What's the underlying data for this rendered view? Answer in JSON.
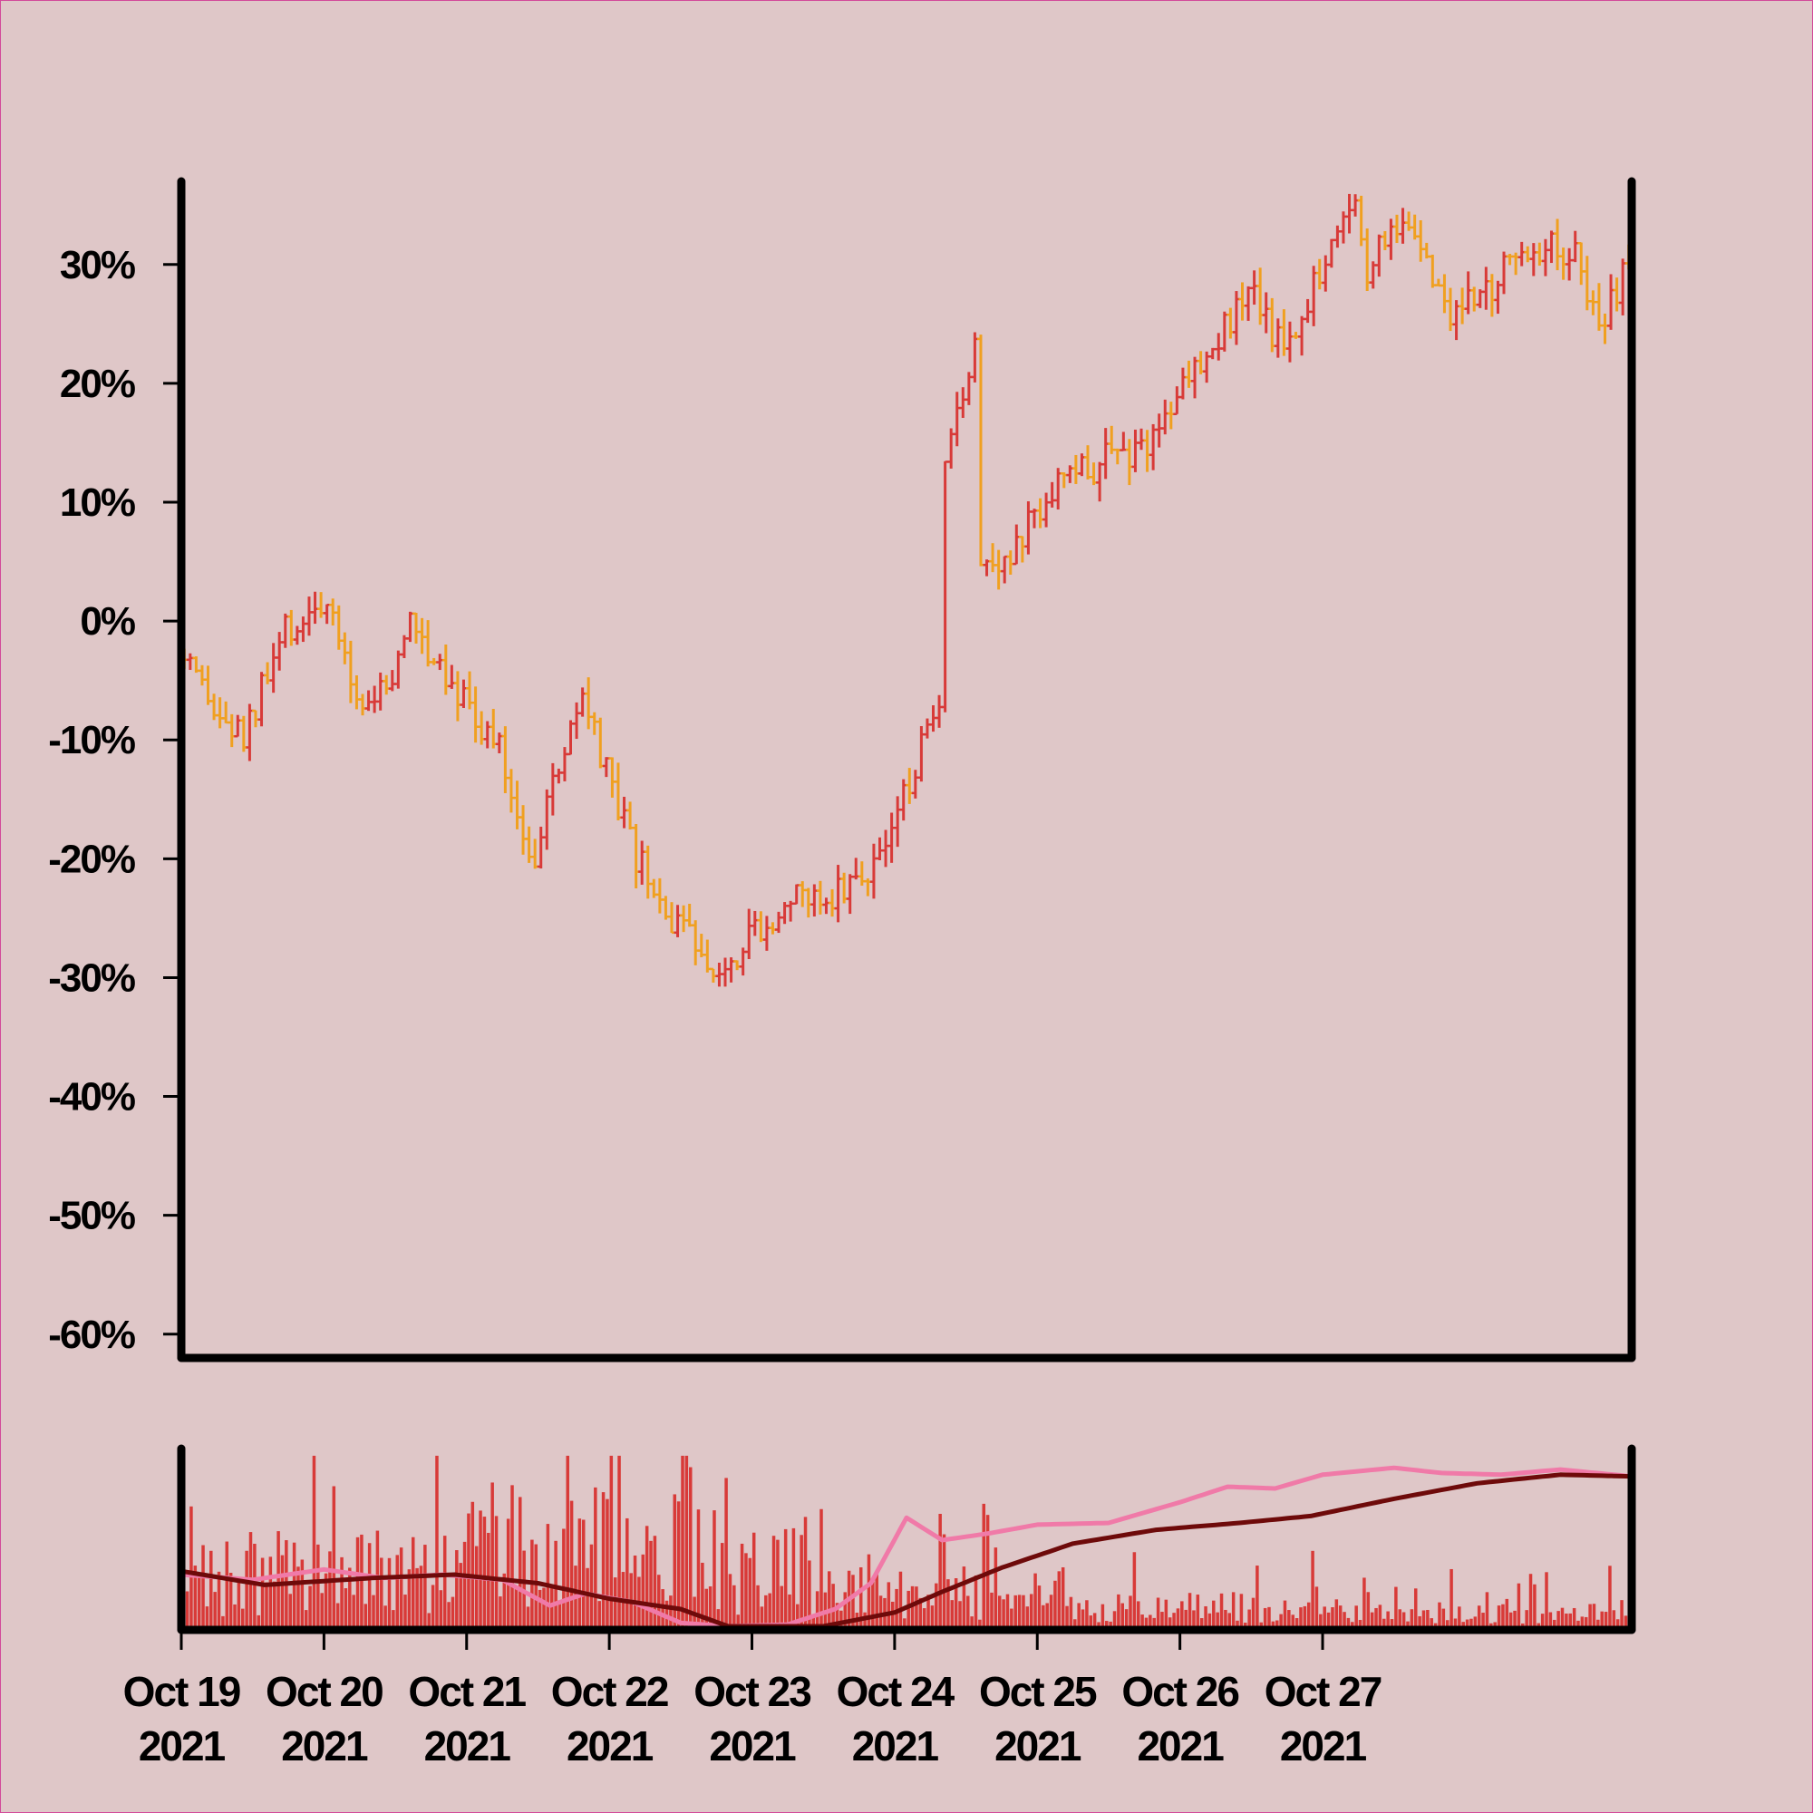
{
  "colors": {
    "background": "#dfc7c8",
    "frame_border": "#d24a9a",
    "bar_up": "#f0a020",
    "bar_down": "#d83a38",
    "volume": "#d83a38",
    "ma_short": "#f07aa8",
    "ma_long": "#6e0a0a",
    "axis": "#000000"
  },
  "chart_data": {
    "type": "ohlc",
    "title": "",
    "price_panel": {
      "ylim": [
        -62,
        37
      ],
      "y_ticks": [
        30,
        20,
        10,
        0,
        -10,
        -20,
        -30,
        -40,
        -50,
        -60
      ],
      "y_tick_labels": [
        "30%",
        "20%",
        "10%",
        "0%",
        "-10%",
        "-20%",
        "-30%",
        "-40%",
        "-50%",
        "-60%"
      ],
      "anchors": [
        [
          "2021-10-19T00:00",
          -3
        ],
        [
          "2021-10-19T06:00",
          -8
        ],
        [
          "2021-10-19T11:00",
          -10
        ],
        [
          "2021-10-19T18:00",
          -1
        ],
        [
          "2021-10-20T00:00",
          1.5
        ],
        [
          "2021-10-20T03:00",
          -2
        ],
        [
          "2021-10-20T07:00",
          -7
        ],
        [
          "2021-10-20T12:00",
          -5
        ],
        [
          "2021-10-20T15:00",
          0
        ],
        [
          "2021-10-20T21:00",
          -4
        ],
        [
          "2021-10-21T02:00",
          -8
        ],
        [
          "2021-10-21T06:00",
          -11
        ],
        [
          "2021-10-21T09:00",
          -16
        ],
        [
          "2021-10-21T12:00",
          -20
        ],
        [
          "2021-10-21T16:00",
          -12
        ],
        [
          "2021-10-21T20:00",
          -7
        ],
        [
          "2021-10-22T00:00",
          -13
        ],
        [
          "2021-10-22T04:00",
          -19
        ],
        [
          "2021-10-22T09:00",
          -24
        ],
        [
          "2021-10-22T14:00",
          -27
        ],
        [
          "2021-10-22T20:00",
          -29
        ],
        [
          "2021-10-23T00:00",
          -26
        ],
        [
          "2021-10-23T06:00",
          -24
        ],
        [
          "2021-10-23T12:00",
          -23
        ],
        [
          "2021-10-23T18:00",
          -22
        ],
        [
          "2021-10-24T00:00",
          -18
        ],
        [
          "2021-10-24T04:00",
          -12
        ],
        [
          "2021-10-24T08:00",
          -8
        ],
        [
          "2021-10-24T09:00",
          12
        ],
        [
          "2021-10-24T14:00",
          24
        ],
        [
          "2021-10-24T15:00",
          6
        ],
        [
          "2021-10-24T20:00",
          5
        ],
        [
          "2021-10-25T02:00",
          11
        ],
        [
          "2021-10-25T10:00",
          13
        ],
        [
          "2021-10-25T19:00",
          15
        ],
        [
          "2021-10-26T00:00",
          19
        ],
        [
          "2021-10-26T06:00",
          24
        ],
        [
          "2021-10-26T13:00",
          27
        ],
        [
          "2021-10-26T18:00",
          23
        ],
        [
          "2021-10-27T02:00",
          32
        ],
        [
          "2021-10-27T06:00",
          35
        ],
        [
          "2021-10-27T08:00",
          30
        ],
        [
          "2021-10-27T15:00",
          34
        ],
        [
          "2021-10-27T21:00",
          26
        ],
        [
          "2021-10-28T02:00",
          27
        ],
        [
          "2021-10-28T06:00",
          29
        ],
        [
          "2021-10-28T12:00",
          32
        ],
        [
          "2021-10-28T19:00",
          31
        ],
        [
          "2021-10-28T23:00",
          25
        ],
        [
          "2021-10-29T03:00",
          29
        ]
      ]
    },
    "volume_panel": {
      "ma_short": [
        [
          "2021-10-19T00:00",
          30
        ],
        [
          "2021-10-19T12:00",
          27
        ],
        [
          "2021-10-20T00:00",
          33
        ],
        [
          "2021-10-20T10:00",
          28
        ],
        [
          "2021-10-20T20:00",
          30
        ],
        [
          "2021-10-21T06:00",
          27
        ],
        [
          "2021-10-21T14:00",
          12
        ],
        [
          "2021-10-21T20:00",
          19
        ],
        [
          "2021-10-22T04:00",
          14
        ],
        [
          "2021-10-22T12:00",
          2
        ],
        [
          "2021-10-22T20:00",
          0
        ],
        [
          "2021-10-23T06:00",
          1
        ],
        [
          "2021-10-23T14:00",
          10
        ],
        [
          "2021-10-23T20:00",
          25
        ],
        [
          "2021-10-24T02:00",
          63
        ],
        [
          "2021-10-24T08:00",
          50
        ],
        [
          "2021-10-24T16:00",
          54
        ],
        [
          "2021-10-25T00:00",
          59
        ],
        [
          "2021-10-25T12:00",
          60
        ],
        [
          "2021-10-26T00:00",
          72
        ],
        [
          "2021-10-26T08:00",
          81
        ],
        [
          "2021-10-26T16:00",
          80
        ],
        [
          "2021-10-27T00:00",
          88
        ],
        [
          "2021-10-27T12:00",
          92
        ],
        [
          "2021-10-27T20:00",
          89
        ],
        [
          "2021-10-28T06:00",
          88
        ],
        [
          "2021-10-28T16:00",
          91
        ],
        [
          "2021-10-29T04:00",
          87
        ]
      ],
      "ma_long": [
        [
          "2021-10-19T00:00",
          32
        ],
        [
          "2021-10-19T14:00",
          24
        ],
        [
          "2021-10-20T08:00",
          28
        ],
        [
          "2021-10-20T22:00",
          30
        ],
        [
          "2021-10-21T12:00",
          25
        ],
        [
          "2021-10-22T00:00",
          16
        ],
        [
          "2021-10-22T12:00",
          10
        ],
        [
          "2021-10-22T20:00",
          0
        ],
        [
          "2021-10-23T12:00",
          0
        ],
        [
          "2021-10-24T00:00",
          8
        ],
        [
          "2021-10-24T08:00",
          20
        ],
        [
          "2021-10-24T18:00",
          34
        ],
        [
          "2021-10-25T06:00",
          48
        ],
        [
          "2021-10-25T20:00",
          56
        ],
        [
          "2021-10-26T10:00",
          60
        ],
        [
          "2021-10-26T22:00",
          64
        ],
        [
          "2021-10-27T12:00",
          74
        ],
        [
          "2021-10-28T02:00",
          83
        ],
        [
          "2021-10-28T16:00",
          88
        ],
        [
          "2021-10-29T04:00",
          87
        ]
      ]
    },
    "x_axis": {
      "range": [
        "2021-10-19T00:00",
        "2021-10-29T04:00"
      ],
      "tick_labels": [
        [
          "Oct 19",
          "2021"
        ],
        [
          "Oct 20",
          "2021"
        ],
        [
          "Oct 21",
          "2021"
        ],
        [
          "Oct 22",
          "2021"
        ],
        [
          "Oct 23",
          "2021"
        ],
        [
          "Oct 24",
          "2021"
        ],
        [
          "Oct 25",
          "2021"
        ],
        [
          "Oct 26",
          "2021"
        ],
        [
          "Oct 27",
          "2021"
        ]
      ],
      "tick_dates": [
        "2021-10-19",
        "2021-10-20",
        "2021-10-21",
        "2021-10-22",
        "2021-10-23",
        "2021-10-24",
        "2021-10-25",
        "2021-10-26",
        "2021-10-27"
      ]
    }
  }
}
